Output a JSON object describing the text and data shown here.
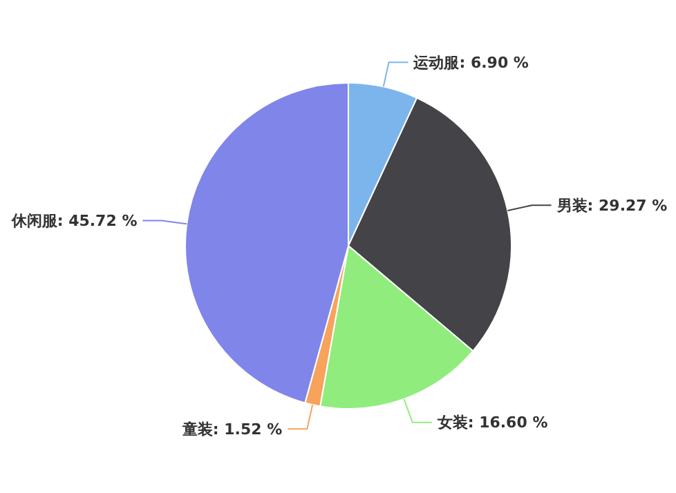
{
  "chart_data": {
    "type": "pie",
    "categories": [
      "运动服",
      "男装",
      "女装",
      "童装",
      "休闲服"
    ],
    "values": [
      6.9,
      29.27,
      16.6,
      1.52,
      45.72
    ],
    "value_labels": [
      "6.90 %",
      "29.27 %",
      "16.60 %",
      "1.52 %",
      "45.72 %"
    ],
    "colors": [
      "#7cb5ec",
      "#434348",
      "#90ed7d",
      "#f7a35c",
      "#8085e9"
    ]
  }
}
